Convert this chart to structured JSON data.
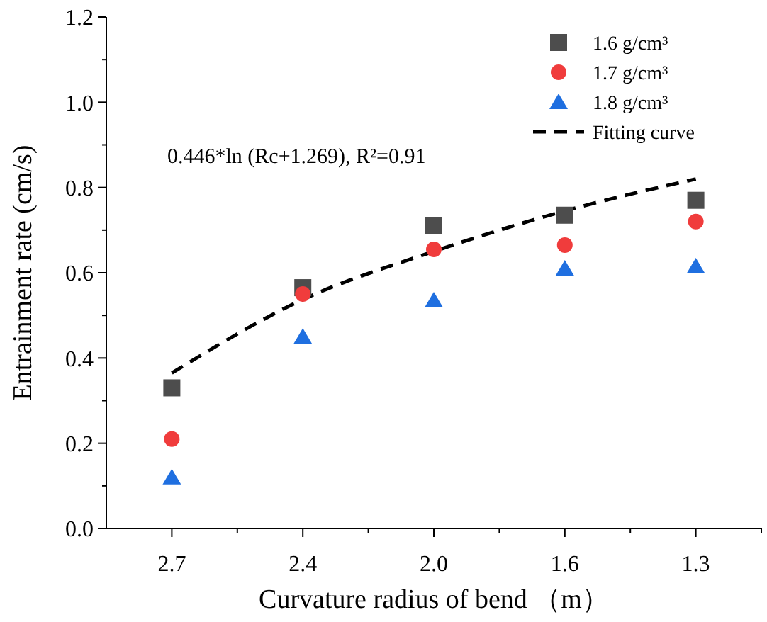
{
  "chart_data": {
    "type": "scatter",
    "xlabel": "Curvature radius of bend （m）",
    "ylabel": "Entrainment rate (cm/s)",
    "categories": [
      "2.7",
      "2.4",
      "2.0",
      "1.6",
      "1.3"
    ],
    "ylim": [
      0,
      1.2
    ],
    "yticks": [
      {
        "value": 0,
        "label": "0.0"
      },
      {
        "value": 0.1,
        "label": null
      },
      {
        "value": 0.2,
        "label": "0.2"
      },
      {
        "value": 0.3,
        "label": null
      },
      {
        "value": 0.4,
        "label": "0.4"
      },
      {
        "value": 0.5,
        "label": null
      },
      {
        "value": 0.6,
        "label": "0.6"
      },
      {
        "value": 0.7,
        "label": null
      },
      {
        "value": 0.8,
        "label": "0.8"
      },
      {
        "value": 0.9,
        "label": null
      },
      {
        "value": 1.0,
        "label": "1.0"
      },
      {
        "value": 1.1,
        "label": null
      },
      {
        "value": 1.2,
        "label": "1.2"
      }
    ],
    "series": [
      {
        "name": "1.6 g/cm³",
        "color": "#4d4d4d",
        "marker": "square",
        "values": [
          0.33,
          0.565,
          0.71,
          0.735,
          0.77
        ]
      },
      {
        "name": "1.7 g/cm³",
        "color": "#f03c3c",
        "marker": "circle",
        "values": [
          0.21,
          0.55,
          0.655,
          0.665,
          0.72
        ]
      },
      {
        "name": "1.8 g/cm³",
        "color": "#1f6fe0",
        "marker": "triangle",
        "values": [
          0.12,
          0.45,
          0.535,
          0.61,
          0.615
        ]
      },
      {
        "name": "Fitting curve",
        "type": "line",
        "color": "#000000",
        "marker": "none",
        "line_style": "dashed",
        "values": [
          0.365,
          0.537,
          0.65,
          0.745,
          0.82
        ]
      }
    ],
    "annotations": [
      "0.446*ln (Rc+1.269), R²=0.91"
    ],
    "legend": "top right",
    "grid": false
  }
}
